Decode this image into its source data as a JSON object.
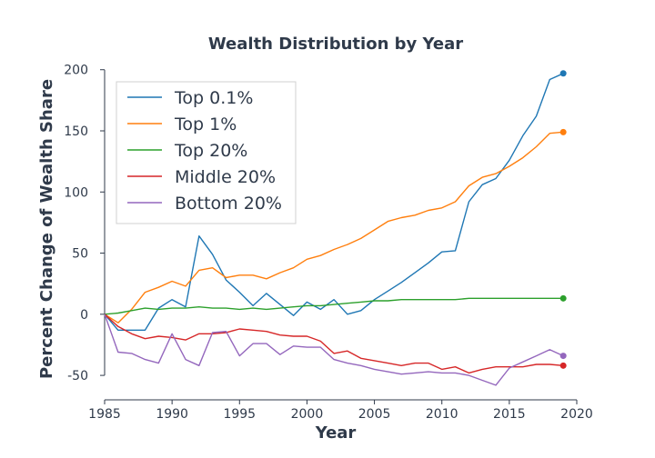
{
  "chart_data": {
    "type": "line",
    "title": "Wealth Distribution by Year",
    "xlabel": "Year",
    "ylabel": "Percent Change of Wealth Share",
    "xlim": [
      1985,
      2020
    ],
    "ylim": [
      -70,
      205
    ],
    "xticks": [
      1985,
      1990,
      1995,
      2000,
      2005,
      2010,
      2015,
      2020
    ],
    "yticks": [
      -50,
      0,
      50,
      100,
      150,
      200
    ],
    "grid": false,
    "legend": "top-left",
    "x": [
      1985,
      1986,
      1987,
      1988,
      1989,
      1990,
      1991,
      1992,
      1993,
      1994,
      1995,
      1996,
      1997,
      1998,
      1999,
      2000,
      2001,
      2002,
      2003,
      2004,
      2005,
      2006,
      2007,
      2008,
      2009,
      2010,
      2011,
      2012,
      2013,
      2014,
      2015,
      2016,
      2017,
      2018,
      2019
    ],
    "series": [
      {
        "name": "Top 0.1%",
        "color": "#1f77b4",
        "values": [
          0,
          -13,
          -13,
          -13,
          5,
          12,
          6,
          64,
          49,
          28,
          18,
          7,
          17,
          8,
          -1,
          10,
          4,
          12,
          0,
          3,
          12,
          19,
          26,
          34,
          42,
          51,
          52,
          92,
          106,
          111,
          126,
          146,
          162,
          192,
          197
        ]
      },
      {
        "name": "Top 1%",
        "color": "#ff7f0e",
        "values": [
          0,
          -7,
          4,
          18,
          22,
          27,
          23,
          36,
          38,
          30,
          32,
          32,
          29,
          34,
          38,
          45,
          48,
          53,
          57,
          62,
          69,
          76,
          79,
          81,
          85,
          87,
          92,
          105,
          112,
          115,
          121,
          128,
          137,
          148,
          149
        ]
      },
      {
        "name": "Top 20%",
        "color": "#2ca02c",
        "values": [
          0,
          1,
          3,
          5,
          4,
          5,
          5,
          6,
          5,
          5,
          4,
          5,
          4,
          5,
          6,
          7,
          7,
          8,
          9,
          10,
          11,
          11,
          12,
          12,
          12,
          12,
          12,
          13,
          13,
          13,
          13,
          13,
          13,
          13,
          13
        ]
      },
      {
        "name": "Middle 20%",
        "color": "#d62728",
        "values": [
          0,
          -10,
          -16,
          -20,
          -18,
          -19,
          -21,
          -16,
          -16,
          -15,
          -12,
          -13,
          -14,
          -17,
          -18,
          -18,
          -22,
          -32,
          -30,
          -36,
          -38,
          -40,
          -42,
          -40,
          -40,
          -45,
          -43,
          -48,
          -45,
          -43,
          -43,
          -43,
          -41,
          -41,
          -42
        ]
      },
      {
        "name": "Bottom 20%",
        "color": "#9467bd",
        "values": [
          0,
          -31,
          -32,
          -37,
          -40,
          -16,
          -37,
          -42,
          -15,
          -14,
          -34,
          -24,
          -24,
          -33,
          -26,
          -27,
          -27,
          -37,
          -40,
          -42,
          -45,
          -47,
          -49,
          -48,
          -47,
          -48,
          -48,
          -50,
          -54,
          -58,
          -44,
          -39,
          -34,
          -29,
          -34
        ]
      }
    ]
  }
}
